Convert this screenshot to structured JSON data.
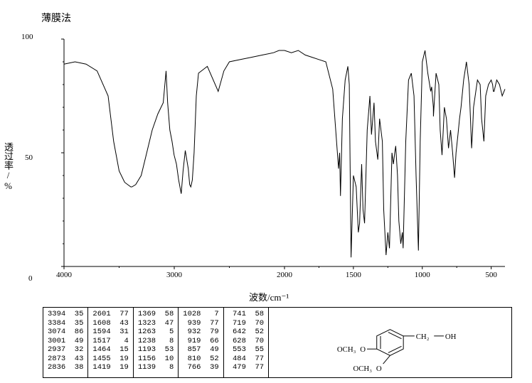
{
  "title": "薄膜法",
  "yaxis": {
    "label": "透过率/%",
    "min": 0,
    "max": 100,
    "ticks": [
      0,
      50,
      100
    ]
  },
  "xaxis": {
    "label": "波数/cm⁻¹",
    "min": 400,
    "max": 4000,
    "ticks": [
      4000,
      3000,
      2000,
      1500,
      1000,
      500
    ]
  },
  "chart": {
    "type": "line",
    "line_color": "#000000",
    "line_width": 1,
    "background_color": "#ffffff",
    "border_color": "#000000",
    "spectrum": [
      [
        4000,
        89
      ],
      [
        3900,
        90
      ],
      [
        3800,
        89
      ],
      [
        3700,
        86
      ],
      [
        3600,
        75
      ],
      [
        3550,
        55
      ],
      [
        3500,
        42
      ],
      [
        3450,
        37
      ],
      [
        3394,
        35
      ],
      [
        3384,
        35
      ],
      [
        3350,
        36
      ],
      [
        3300,
        40
      ],
      [
        3250,
        50
      ],
      [
        3200,
        60
      ],
      [
        3150,
        67
      ],
      [
        3120,
        70
      ],
      [
        3100,
        72
      ],
      [
        3074,
        86
      ],
      [
        3060,
        72
      ],
      [
        3040,
        60
      ],
      [
        3020,
        55
      ],
      [
        3001,
        49
      ],
      [
        2980,
        45
      ],
      [
        2960,
        38
      ],
      [
        2937,
        32
      ],
      [
        2920,
        42
      ],
      [
        2900,
        51
      ],
      [
        2873,
        43
      ],
      [
        2860,
        36
      ],
      [
        2850,
        35
      ],
      [
        2836,
        38
      ],
      [
        2820,
        50
      ],
      [
        2800,
        75
      ],
      [
        2780,
        85
      ],
      [
        2700,
        88
      ],
      [
        2601,
        77
      ],
      [
        2550,
        86
      ],
      [
        2500,
        90
      ],
      [
        2400,
        91
      ],
      [
        2300,
        92
      ],
      [
        2200,
        93
      ],
      [
        2100,
        94
      ],
      [
        2050,
        95
      ],
      [
        2000,
        95
      ],
      [
        1950,
        94
      ],
      [
        1900,
        95
      ],
      [
        1850,
        93
      ],
      [
        1800,
        92
      ],
      [
        1750,
        91
      ],
      [
        1700,
        90
      ],
      [
        1650,
        78
      ],
      [
        1608,
        43
      ],
      [
        1600,
        50
      ],
      [
        1594,
        31
      ],
      [
        1580,
        65
      ],
      [
        1560,
        82
      ],
      [
        1540,
        88
      ],
      [
        1530,
        80
      ],
      [
        1517,
        4
      ],
      [
        1500,
        40
      ],
      [
        1480,
        35
      ],
      [
        1464,
        15
      ],
      [
        1455,
        19
      ],
      [
        1440,
        45
      ],
      [
        1430,
        25
      ],
      [
        1419,
        19
      ],
      [
        1400,
        60
      ],
      [
        1380,
        75
      ],
      [
        1369,
        58
      ],
      [
        1350,
        72
      ],
      [
        1340,
        55
      ],
      [
        1323,
        47
      ],
      [
        1310,
        65
      ],
      [
        1290,
        55
      ],
      [
        1280,
        25
      ],
      [
        1263,
        5
      ],
      [
        1250,
        15
      ],
      [
        1238,
        8
      ],
      [
        1220,
        50
      ],
      [
        1210,
        45
      ],
      [
        1200,
        50
      ],
      [
        1193,
        53
      ],
      [
        1180,
        40
      ],
      [
        1170,
        20
      ],
      [
        1156,
        10
      ],
      [
        1145,
        15
      ],
      [
        1139,
        8
      ],
      [
        1120,
        55
      ],
      [
        1100,
        82
      ],
      [
        1080,
        85
      ],
      [
        1060,
        75
      ],
      [
        1045,
        40
      ],
      [
        1028,
        7
      ],
      [
        1015,
        55
      ],
      [
        1000,
        90
      ],
      [
        980,
        95
      ],
      [
        960,
        85
      ],
      [
        939,
        77
      ],
      [
        932,
        79
      ],
      [
        920,
        70
      ],
      [
        919,
        66
      ],
      [
        900,
        85
      ],
      [
        880,
        80
      ],
      [
        870,
        60
      ],
      [
        857,
        49
      ],
      [
        840,
        70
      ],
      [
        825,
        65
      ],
      [
        810,
        52
      ],
      [
        795,
        60
      ],
      [
        780,
        50
      ],
      [
        766,
        39
      ],
      [
        755,
        50
      ],
      [
        741,
        58
      ],
      [
        730,
        65
      ],
      [
        719,
        70
      ],
      [
        700,
        82
      ],
      [
        680,
        90
      ],
      [
        660,
        80
      ],
      [
        642,
        52
      ],
      [
        635,
        60
      ],
      [
        628,
        70
      ],
      [
        600,
        82
      ],
      [
        580,
        80
      ],
      [
        570,
        65
      ],
      [
        553,
        55
      ],
      [
        540,
        75
      ],
      [
        520,
        80
      ],
      [
        500,
        82
      ],
      [
        490,
        80
      ],
      [
        484,
        77
      ],
      [
        479,
        77
      ],
      [
        460,
        82
      ],
      [
        440,
        80
      ],
      [
        420,
        75
      ],
      [
        400,
        78
      ]
    ]
  },
  "peak_table": {
    "columns": [
      [
        [
          3394,
          35
        ],
        [
          3384,
          35
        ],
        [
          3074,
          86
        ],
        [
          3001,
          49
        ],
        [
          2937,
          32
        ],
        [
          2873,
          43
        ],
        [
          2836,
          38
        ]
      ],
      [
        [
          2601,
          77
        ],
        [
          1608,
          43
        ],
        [
          1594,
          31
        ],
        [
          1517,
          4
        ],
        [
          1464,
          15
        ],
        [
          1455,
          19
        ],
        [
          1419,
          19
        ]
      ],
      [
        [
          1369,
          58
        ],
        [
          1323,
          47
        ],
        [
          1263,
          5
        ],
        [
          1238,
          8
        ],
        [
          1193,
          53
        ],
        [
          1156,
          10
        ],
        [
          1139,
          8
        ]
      ],
      [
        [
          1028,
          7
        ],
        [
          939,
          77
        ],
        [
          932,
          79
        ],
        [
          919,
          66
        ],
        [
          857,
          49
        ],
        [
          810,
          52
        ],
        [
          766,
          39
        ]
      ],
      [
        [
          741,
          58
        ],
        [
          719,
          70
        ],
        [
          642,
          52
        ],
        [
          628,
          70
        ],
        [
          553,
          55
        ],
        [
          484,
          77
        ],
        [
          479,
          77
        ]
      ]
    ]
  },
  "structure": {
    "labels": {
      "och3": "OCH₃",
      "ch2": "CH₂",
      "oh": "OH"
    },
    "line_color": "#000000"
  }
}
